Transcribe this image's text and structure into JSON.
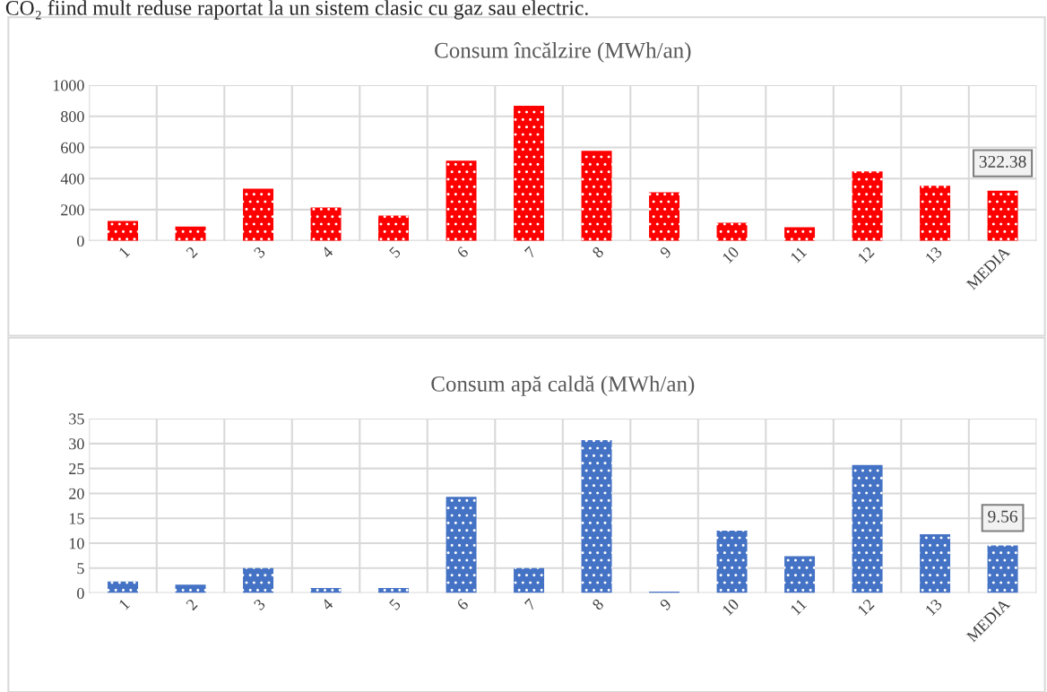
{
  "chart_data": [
    {
      "type": "bar",
      "title": "Consum încălzire (MWh/an)",
      "annotations": [
        "CO₂ fiind mult reduse raportat la un sistem clasic cu gaz sau electric."
      ],
      "categories": [
        "1",
        "2",
        "3",
        "4",
        "5",
        "6",
        "7",
        "8",
        "9",
        "10",
        "11",
        "12",
        "13",
        "MEDIA"
      ],
      "values": [
        127,
        92,
        335,
        214,
        162,
        514,
        867,
        578,
        312,
        116,
        87,
        445,
        353,
        322.38
      ],
      "value_labels": [
        null,
        null,
        null,
        null,
        null,
        null,
        null,
        null,
        null,
        null,
        null,
        null,
        null,
        "322.38"
      ],
      "color": "#ff0000",
      "ylim": [
        0,
        1000
      ],
      "yticks": [
        0,
        200,
        400,
        600,
        800,
        1000
      ],
      "grid": true
    },
    {
      "type": "bar",
      "title": "Consum apă caldă (MWh/an)",
      "categories": [
        "1",
        "2",
        "3",
        "4",
        "5",
        "6",
        "7",
        "8",
        "9",
        "10",
        "11",
        "12",
        "13",
        "MEDIA"
      ],
      "values": [
        2.3,
        1.7,
        5.0,
        1.0,
        1.0,
        19.3,
        5.0,
        30.7,
        0.3,
        12.5,
        7.4,
        25.7,
        11.8,
        9.56
      ],
      "value_labels": [
        null,
        null,
        null,
        null,
        null,
        null,
        null,
        null,
        null,
        null,
        null,
        null,
        null,
        "9.56"
      ],
      "color": "#4472c4",
      "ylim": [
        0,
        35
      ],
      "yticks": [
        0,
        5,
        10,
        15,
        20,
        25,
        30,
        35
      ],
      "grid": true
    }
  ]
}
